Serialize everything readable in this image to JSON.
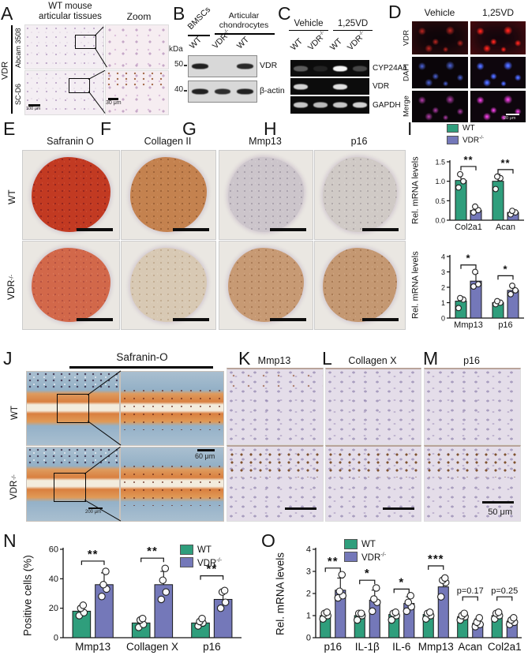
{
  "colors": {
    "wt": "#2f9e7c",
    "ko": "#7478b9"
  },
  "legend": {
    "wt": "WT",
    "ko_base": "VDR",
    "ko_sup": "-/-"
  },
  "a": {
    "letter": "A",
    "title1": "WT mouse",
    "title2": "articular tissues",
    "zoom": "Zoom",
    "group": "VDR",
    "row1": "Abcam 3508",
    "row2": "SC-D6",
    "scale_low": "100 μm",
    "scale_zoom": "30 μm"
  },
  "b": {
    "letter": "B",
    "group1": "BMSCs",
    "group2a": "Articular",
    "group2b": "chondrocytes",
    "kda": "kDa",
    "m50": "50",
    "m40": "40",
    "lanes": [
      {
        "t": "WT"
      },
      {
        "t": "VDR",
        "sup": "-/-"
      },
      {
        "t": "WT"
      }
    ],
    "rows": [
      {
        "label": "VDR",
        "intensities": [
          0.95,
          0,
          0.9
        ]
      },
      {
        "label": "β-actin",
        "intensities": [
          0.95,
          0.88,
          0.95
        ]
      }
    ]
  },
  "c": {
    "letter": "C",
    "cond1": "Vehicle",
    "cond2": "1,25VD",
    "lanes": [
      {
        "t": "WT"
      },
      {
        "t": "VDR",
        "sup": "-/-"
      },
      {
        "t": "WT"
      },
      {
        "t": "VDR",
        "sup": "-/-"
      }
    ],
    "rows": [
      {
        "label": "CYP24A1",
        "intensities": [
          0.35,
          0.1,
          1,
          0.25
        ]
      },
      {
        "label": "VDR",
        "intensities": [
          0.85,
          0,
          0.9,
          0
        ]
      },
      {
        "label": "GAPDH",
        "intensities": [
          0.8,
          0.75,
          0.8,
          0.85
        ]
      }
    ]
  },
  "d": {
    "letter": "D",
    "col1": "Vehicle",
    "col2": "1,25VD",
    "row1": "VDR",
    "row2": "DAPI",
    "row3": "Merge",
    "scale": "20 μm"
  },
  "row2": {
    "e": "E",
    "f": "F",
    "g": "G",
    "h": "H",
    "i": "I",
    "e_title": "Safranin O",
    "f_title": "Collagen II",
    "g_title": "Mmp13",
    "h_title": "p16",
    "wt": "WT",
    "ko_base": "VDR",
    "ko_sup": "-/-"
  },
  "j": {
    "letter": "J",
    "title": "Safranin-O",
    "wt": "WT",
    "ko_base": "VDR",
    "ko_sup": "-/-",
    "scale_low": "200 μm",
    "scale_zoom": "60 μm"
  },
  "klm": {
    "k": "K",
    "l": "L",
    "m": "M",
    "k_title": "Mmp13",
    "l_title": "Collagen X",
    "m_title": "p16",
    "scale": "50 μm"
  },
  "n": {
    "letter": "N"
  },
  "o": {
    "letter": "O"
  },
  "chart_data": [
    {
      "id": "i-top",
      "type": "bar",
      "ylabel": "Rel. mRNA levels",
      "ylim": [
        0,
        1.5
      ],
      "yticks": [
        0,
        0.5,
        1,
        1.5
      ],
      "decimals": 1,
      "compact": true,
      "legend_position": "top",
      "categories": [
        "Col2a1",
        "Acan"
      ],
      "series": [
        {
          "name": "WT",
          "values": [
            1.02,
            1.0
          ],
          "errors": [
            0.16,
            0.18
          ],
          "points": [
            [
              0.84,
              1.0,
              1.18
            ],
            [
              0.8,
              1.08,
              1.12
            ]
          ]
        },
        {
          "name": "VDR-/-",
          "values": [
            0.25,
            0.2
          ],
          "errors": [
            0.07,
            0.05
          ],
          "points": [
            [
              0.2,
              0.26,
              0.35
            ],
            [
              0.15,
              0.2,
              0.24
            ]
          ]
        }
      ],
      "sig": [
        "**",
        "**"
      ],
      "sig_y": [
        1.38,
        1.3
      ]
    },
    {
      "id": "i-bottom",
      "type": "bar",
      "ylabel": "Rel. mRNA levels",
      "ylim": [
        0,
        4
      ],
      "yticks": [
        0,
        1,
        2,
        3,
        4
      ],
      "decimals": 0,
      "compact": true,
      "categories": [
        "Mmp13",
        "p16"
      ],
      "series": [
        {
          "name": "WT",
          "values": [
            1.1,
            1.0
          ],
          "errors": [
            0.28,
            0.12
          ],
          "points": [
            [
              0.65,
              1.2,
              1.3
            ],
            [
              0.9,
              1.0,
              1.1
            ]
          ]
        },
        {
          "name": "VDR-/-",
          "values": [
            2.4,
            1.8
          ],
          "errors": [
            0.5,
            0.25
          ],
          "points": [
            [
              2.05,
              2.2,
              3.0
            ],
            [
              1.55,
              1.8,
              2.1
            ]
          ]
        }
      ],
      "sig": [
        "*",
        "*"
      ],
      "sig_y": [
        3.45,
        2.75
      ]
    },
    {
      "id": "n",
      "type": "bar",
      "ylabel": "Positive cells (%)",
      "ylim": [
        0,
        60
      ],
      "yticks": [
        0,
        20,
        40,
        60
      ],
      "decimals": 0,
      "legend_position": "top-right",
      "categories": [
        "Mmp13",
        "Collagen X",
        "p16"
      ],
      "series": [
        {
          "name": "WT",
          "values": [
            18,
            10,
            10
          ],
          "errors": [
            3,
            3,
            2
          ],
          "points": [
            [
              15,
              17,
              20,
              22
            ],
            [
              7,
              9,
              12,
              13
            ],
            [
              8,
              10,
              11,
              13
            ]
          ]
        },
        {
          "name": "VDR-/-",
          "values": [
            36,
            36,
            26
          ],
          "errors": [
            8,
            9,
            5
          ],
          "points": [
            [
              28,
              33,
              36,
              45
            ],
            [
              26,
              31,
              39,
              47
            ],
            [
              20,
              24,
              31,
              32
            ]
          ]
        }
      ],
      "sig": [
        "**",
        "**",
        "**"
      ],
      "sig_y": [
        52,
        54,
        42
      ]
    },
    {
      "id": "o",
      "type": "bar",
      "ylabel": "Rel. mRNA levels",
      "ylim": [
        0,
        4
      ],
      "yticks": [
        0,
        1,
        2,
        3,
        4
      ],
      "decimals": 0,
      "legend_position": "top-left",
      "categories": [
        "p16",
        "IL-1β",
        "IL-6",
        "Mmp13",
        "Acan",
        "Col2a1"
      ],
      "series": [
        {
          "name": "WT",
          "values": [
            1.0,
            1.0,
            1.05,
            1.05,
            0.95,
            1.0
          ],
          "errors": [
            0.15,
            0.15,
            0.15,
            0.12,
            0.12,
            0.13
          ],
          "points": [
            [
              0.85,
              1.0,
              1.1,
              1.15
            ],
            [
              0.8,
              1.0,
              1.1,
              1.1
            ],
            [
              0.8,
              1.0,
              1.1,
              1.15
            ],
            [
              0.85,
              1.0,
              1.1,
              1.15
            ],
            [
              0.8,
              0.95,
              1.0,
              1.1
            ],
            [
              0.85,
              1.0,
              1.1,
              1.15
            ]
          ]
        },
        {
          "name": "VDR-/-",
          "values": [
            2.15,
            1.7,
            1.55,
            2.3,
            0.65,
            0.75
          ],
          "errors": [
            0.55,
            0.45,
            0.3,
            0.35,
            0.2,
            0.15
          ],
          "points": [
            [
              1.8,
              1.9,
              2.1,
              2.85
            ],
            [
              1.2,
              1.6,
              1.75,
              2.25
            ],
            [
              1.2,
              1.4,
              1.6,
              1.9
            ],
            [
              1.85,
              2.5,
              2.6,
              2.7
            ],
            [
              0.5,
              0.6,
              0.7,
              0.9
            ],
            [
              0.6,
              0.7,
              0.8,
              0.9
            ]
          ]
        }
      ],
      "sig": [
        "**",
        "*",
        "*",
        "***",
        "p=0.17",
        "p=0.25"
      ],
      "sig_y": [
        3.15,
        2.6,
        2.2,
        3.25,
        1.85,
        1.85
      ]
    }
  ]
}
